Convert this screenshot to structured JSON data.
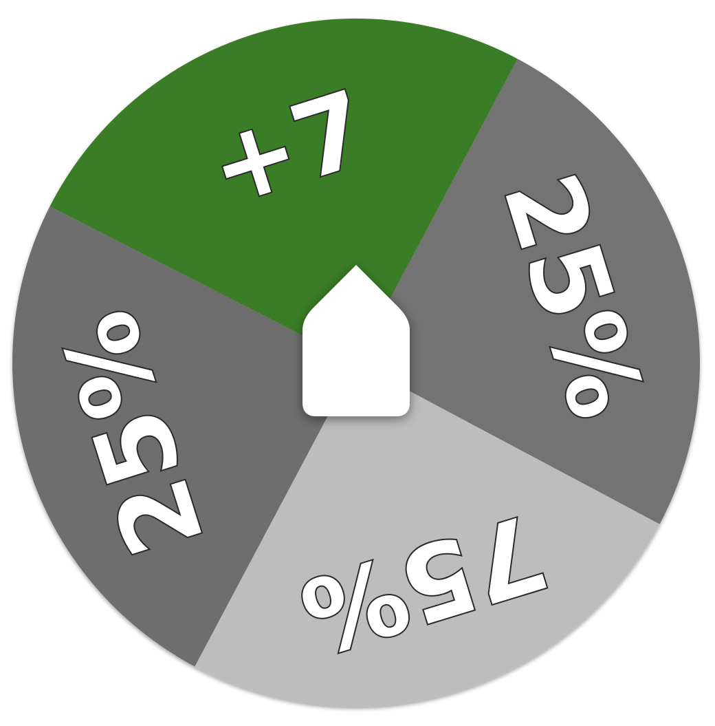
{
  "wheel": {
    "segments": [
      {
        "label": "+7",
        "color": "#3a7d25"
      },
      {
        "label": "25%",
        "color": "#737373"
      },
      {
        "label": "75%",
        "color": "#bdbdbd"
      },
      {
        "label": "25%",
        "color": "#6e6e6e"
      }
    ]
  },
  "pointer": {
    "color": "#ffffff"
  },
  "label_color": "#ffffff",
  "label_outline": "#2a2a2a"
}
